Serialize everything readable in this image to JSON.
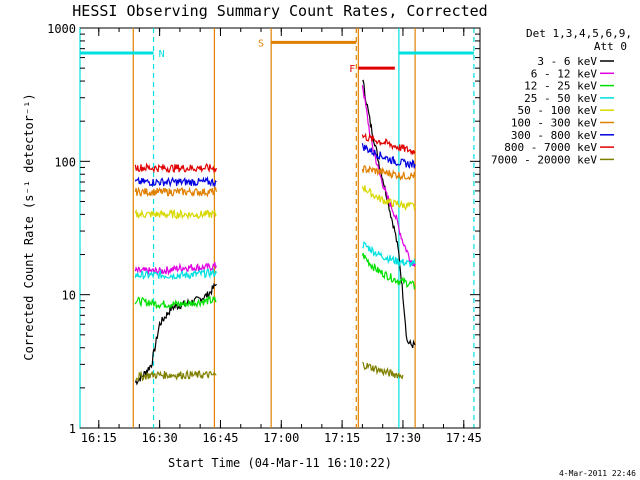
{
  "chart_data": {
    "type": "line",
    "title": "HESSI Observing Summary Count Rates, Corrected",
    "xlabel": "Start Time (04-Mar-11 16:10:22)",
    "ylabel": "Corrected Count Rate (s⁻¹ detector⁻¹)",
    "ylog": true,
    "ylim": [
      1,
      1000
    ],
    "xlim": [
      "16:10:22",
      "17:49:00"
    ],
    "x_ticks": [
      "16:15",
      "16:30",
      "16:45",
      "17:00",
      "17:15",
      "17:30",
      "17:45"
    ],
    "y_ticks": [
      "1",
      "10",
      "100",
      "1000"
    ],
    "legend_position": "top-right",
    "legend_title": [
      "Det 1,3,4,5,6,9,",
      "Att 0"
    ],
    "timestamp": "4-Mar-2011 22:46",
    "series": [
      {
        "name": "3 - 6 keV",
        "color": "#000000",
        "segments": [
          {
            "x": [
              "16:24:00",
              "16:26:00",
              "16:28:00",
              "16:30:00",
              "16:33:00",
              "16:36:00",
              "16:39:00",
              "16:42:00",
              "16:44:00"
            ],
            "y": [
              2.2,
              2.5,
              3.0,
              6.0,
              8.0,
              8.5,
              9.0,
              10.0,
              12.0
            ]
          },
          {
            "x": [
              "17:20:00",
              "17:21:00",
              "17:22:00",
              "17:23:00",
              "17:24:00",
              "17:25:00",
              "17:26:00",
              "17:27:00",
              "17:28:00",
              "17:29:00",
              "17:30:00",
              "17:31:00",
              "17:32:00",
              "17:33:00"
            ],
            "y": [
              420,
              280,
              190,
              140,
              100,
              75,
              55,
              40,
              30,
              20,
              10,
              4.5,
              4.2,
              4.2
            ]
          }
        ]
      },
      {
        "name": "6 - 12 keV",
        "color": "#e000e0",
        "segments": [
          {
            "x": [
              "16:24:00",
              "16:30:00",
              "16:36:00",
              "16:42:00",
              "16:44:00"
            ],
            "y": [
              15,
              15,
              16,
              16,
              16.5
            ]
          },
          {
            "x": [
              "17:20:00",
              "17:22:00",
              "17:24:00",
              "17:26:00",
              "17:28:00",
              "17:30:00",
              "17:32:00",
              "17:33:00"
            ],
            "y": [
              380,
              150,
              85,
              55,
              40,
              25,
              18,
              17
            ]
          }
        ]
      },
      {
        "name": "12 - 25 keV",
        "color": "#00e000",
        "segments": [
          {
            "x": [
              "16:24:00",
              "16:30:00",
              "16:36:00",
              "16:42:00",
              "16:44:00"
            ],
            "y": [
              9,
              8.5,
              8.5,
              9,
              9
            ]
          },
          {
            "x": [
              "17:20:00",
              "17:22:00",
              "17:24:00",
              "17:26:00",
              "17:28:00",
              "17:30:00",
              "17:32:00",
              "17:33:00"
            ],
            "y": [
              20,
              17,
              15,
              14,
              13,
              12.5,
              12,
              11.5
            ]
          }
        ]
      },
      {
        "name": "25 - 50 keV",
        "color": "#00e0e0",
        "segments": [
          {
            "x": [
              "16:24:00",
              "16:30:00",
              "16:36:00",
              "16:42:00",
              "16:44:00"
            ],
            "y": [
              14,
              14,
              14,
              14.5,
              14.5
            ]
          },
          {
            "x": [
              "17:20:00",
              "17:22:00",
              "17:24:00",
              "17:26:00",
              "17:28:00",
              "17:30:00",
              "17:32:00",
              "17:33:00"
            ],
            "y": [
              24,
              22,
              20,
              19,
              18,
              17.5,
              17,
              17
            ]
          }
        ]
      },
      {
        "name": "50 - 100 keV",
        "color": "#d8d800",
        "segments": [
          {
            "x": [
              "16:24:00",
              "16:30:00",
              "16:36:00",
              "16:42:00",
              "16:44:00"
            ],
            "y": [
              40,
              40,
              40,
              40,
              40
            ]
          },
          {
            "x": [
              "17:20:00",
              "17:22:00",
              "17:24:00",
              "17:26:00",
              "17:28:00",
              "17:30:00",
              "17:32:00",
              "17:33:00"
            ],
            "y": [
              65,
              58,
              53,
              50,
              48,
              47,
              46,
              46
            ]
          }
        ]
      },
      {
        "name": "100 - 300 keV",
        "color": "#e08000",
        "segments": [
          {
            "x": [
              "16:24:00",
              "16:30:00",
              "16:36:00",
              "16:42:00",
              "16:44:00"
            ],
            "y": [
              59,
              59,
              59,
              59,
              59
            ]
          },
          {
            "x": [
              "17:20:00",
              "17:22:00",
              "17:24:00",
              "17:26:00",
              "17:28:00",
              "17:30:00",
              "17:32:00",
              "17:33:00"
            ],
            "y": [
              88,
              86,
              84,
              82,
              80,
              78,
              78,
              78
            ]
          }
        ]
      },
      {
        "name": "300 - 800 keV",
        "color": "#0000e0",
        "segments": [
          {
            "x": [
              "16:24:00",
              "16:30:00",
              "16:36:00",
              "16:42:00",
              "16:44:00"
            ],
            "y": [
              70,
              70,
              70,
              70,
              70
            ]
          },
          {
            "x": [
              "17:20:00",
              "17:22:00",
              "17:24:00",
              "17:26:00",
              "17:28:00",
              "17:30:00",
              "17:32:00",
              "17:33:00"
            ],
            "y": [
              130,
              120,
              112,
              106,
              100,
              97,
              95,
              95
            ]
          }
        ]
      },
      {
        "name": "800 - 7000 keV",
        "color": "#e00000",
        "segments": [
          {
            "x": [
              "16:24:00",
              "16:30:00",
              "16:36:00",
              "16:42:00",
              "16:44:00"
            ],
            "y": [
              90,
              89,
              89,
              89,
              89
            ]
          },
          {
            "x": [
              "17:20:00",
              "17:22:00",
              "17:24:00",
              "17:26:00",
              "17:28:00",
              "17:30:00",
              "17:32:00",
              "17:33:00"
            ],
            "y": [
              155,
              148,
              142,
              136,
              130,
              125,
              120,
              118
            ]
          }
        ]
      },
      {
        "name": "7000 - 20000 keV",
        "color": "#808000",
        "segments": [
          {
            "x": [
              "16:24:00",
              "16:28:00",
              "16:32:00",
              "16:36:00",
              "16:40:00",
              "16:44:00"
            ],
            "y": [
              2.4,
              2.5,
              2.5,
              2.5,
              2.5,
              2.5
            ]
          },
          {
            "x": [
              "17:20:00",
              "17:23:00",
              "17:26:00",
              "17:29:00",
              "17:30:00"
            ],
            "y": [
              3.0,
              2.8,
              2.6,
              2.5,
              2.5
            ]
          }
        ]
      }
    ],
    "vertical_lines": [
      {
        "x": "16:10:22",
        "color": "#00e0e0",
        "style": "solid"
      },
      {
        "x": "16:28:30",
        "color": "#00e0e0",
        "style": "dashed"
      },
      {
        "x": "16:23:30",
        "color": "#e08000",
        "style": "solid"
      },
      {
        "x": "16:43:30",
        "color": "#e08000",
        "style": "solid"
      },
      {
        "x": "16:57:30",
        "color": "#e08000",
        "style": "solid"
      },
      {
        "x": "17:18:30",
        "color": "#e08000",
        "style": "dashed"
      },
      {
        "x": "17:19:00",
        "color": "#e08000",
        "style": "solid"
      },
      {
        "x": "17:29:00",
        "color": "#00e0e0",
        "style": "solid"
      },
      {
        "x": "17:33:00",
        "color": "#e08000",
        "style": "solid"
      },
      {
        "x": "17:47:30",
        "color": "#00e0e0",
        "style": "dashed"
      }
    ],
    "flags": [
      {
        "label": "N",
        "color": "#00e0e0",
        "x_start": "16:10:22",
        "x_end": "16:28:30",
        "y": 650,
        "label_x": "16:30:30"
      },
      {
        "label": "",
        "color": "#00e0e0",
        "x_start": "17:29:00",
        "x_end": "17:47:30",
        "y": 650,
        "label_x": ""
      },
      {
        "label": "S",
        "color": "#e08000",
        "x_start": "16:57:30",
        "x_end": "17:18:30",
        "y": 780,
        "label_x": "16:55:00"
      },
      {
        "label": "F",
        "color": "#e00000",
        "x_start": "17:19:00",
        "x_end": "17:28:00",
        "y": 500,
        "label_x": "17:17:30"
      }
    ]
  }
}
